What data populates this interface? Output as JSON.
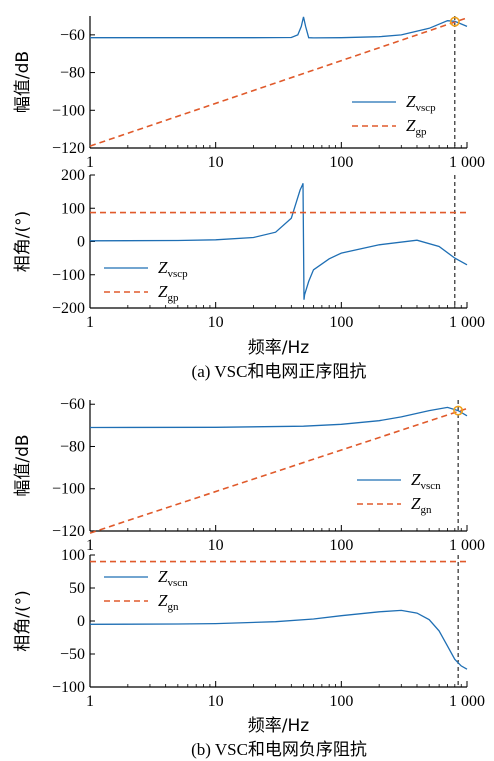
{
  "colors": {
    "impedance": "#1f6fb4",
    "grid": "#e05a2b",
    "marker": "#f0a21c",
    "axis": "#000000"
  },
  "captions": {
    "a": "(a)  VSC和电网正序阻抗",
    "b": "(b)  VSC和电网负序阻抗"
  },
  "chart_data": [
    {
      "type": "line",
      "xscale": "log",
      "xlim": [
        1,
        1000
      ],
      "xticks": [
        "1",
        "10",
        "100",
        "1 000"
      ],
      "xlabel": "",
      "ylabel": "幅值/dB",
      "ylim": [
        -120,
        -50
      ],
      "yticks": [
        "-60",
        "-80",
        "-100",
        "-120"
      ],
      "legend": "right",
      "marker": {
        "x": 800,
        "y": -53,
        "shape": "circle"
      },
      "vline_x": 800,
      "series": [
        {
          "name": "Zvscp",
          "label_main": "Z",
          "label_sub": "vscp",
          "style": "solid",
          "x": [
            1,
            5,
            20,
            40,
            45,
            48,
            50,
            52,
            55,
            60,
            100,
            200,
            300,
            500,
            700,
            800,
            1000
          ],
          "y": [
            -61.5,
            -61.5,
            -61.5,
            -61.4,
            -60,
            -55.5,
            -50.5,
            -55.5,
            -61.5,
            -61.6,
            -61.5,
            -61,
            -60,
            -56.5,
            -52.5,
            -52.8,
            -55.5
          ]
        },
        {
          "name": "Zgp",
          "label_main": "Z",
          "label_sub": "gp",
          "style": "dashed",
          "x": [
            1,
            1000
          ],
          "y": [
            -119,
            -51
          ]
        }
      ]
    },
    {
      "type": "line",
      "xscale": "log",
      "xlim": [
        1,
        1000
      ],
      "xticks": [
        "1",
        "10",
        "100",
        "1 000"
      ],
      "xlabel": "频率/Hz",
      "ylabel": "相角/(°)",
      "ylim": [
        -200,
        200
      ],
      "yticks": [
        "200",
        "100",
        "0",
        "-100",
        "-200"
      ],
      "legend": "bottom-left",
      "vline_x": 800,
      "series": [
        {
          "name": "Zvscp",
          "label_main": "Z",
          "label_sub": "vscp",
          "style": "solid",
          "x": [
            1,
            5,
            10,
            20,
            30,
            40,
            44,
            47,
            49,
            49.5,
            50.5,
            51,
            55,
            60,
            80,
            100,
            200,
            400,
            600,
            800,
            1000
          ],
          "y": [
            2,
            3,
            5,
            12,
            28,
            70,
            120,
            155,
            170,
            175,
            -175,
            -160,
            -120,
            -85,
            -52,
            -35,
            -10,
            4,
            -15,
            -50,
            -70
          ]
        },
        {
          "name": "Zgp",
          "label_main": "Z",
          "label_sub": "gp",
          "style": "dashed",
          "x": [
            1,
            1000
          ],
          "y": [
            87,
            87
          ]
        }
      ]
    },
    {
      "type": "line",
      "xscale": "log",
      "xlim": [
        1,
        1000
      ],
      "xticks": [
        "1",
        "10",
        "100",
        "1 000"
      ],
      "xlabel": "",
      "ylabel": "幅值/dB",
      "ylim": [
        -120,
        -58
      ],
      "yticks": [
        "-60",
        "-80",
        "-100",
        "-120"
      ],
      "legend": "right",
      "marker": {
        "x": 850,
        "y": -63,
        "shape": "circle"
      },
      "vline_x": 850,
      "series": [
        {
          "name": "Zvscn",
          "label_main": "Z",
          "label_sub": "vscn",
          "style": "solid",
          "x": [
            1,
            10,
            50,
            100,
            200,
            300,
            500,
            700,
            850,
            1000
          ],
          "y": [
            -71,
            -70.9,
            -70.4,
            -69.5,
            -67.8,
            -66,
            -63,
            -61.5,
            -63,
            -65.5
          ]
        },
        {
          "name": "Zgn",
          "label_main": "Z",
          "label_sub": "gn",
          "style": "dashed",
          "x": [
            1,
            1000
          ],
          "y": [
            -121,
            -62
          ]
        }
      ]
    },
    {
      "type": "line",
      "xscale": "log",
      "xlim": [
        1,
        1000
      ],
      "xticks": [
        "1",
        "10",
        "100",
        "1 000"
      ],
      "xlabel": "频率/Hz",
      "ylabel": "相角/(°)",
      "ylim": [
        -100,
        100
      ],
      "yticks": [
        "100",
        "50",
        "0",
        "-50",
        "-100"
      ],
      "legend": "top-left",
      "vline_x": 850,
      "series": [
        {
          "name": "Zvscn",
          "label_main": "Z",
          "label_sub": "vscn",
          "style": "solid",
          "x": [
            1,
            5,
            10,
            30,
            60,
            100,
            200,
            300,
            400,
            500,
            600,
            700,
            800,
            900,
            1000
          ],
          "y": [
            -5,
            -4.5,
            -4,
            -1,
            3,
            8,
            14,
            16,
            12,
            2,
            -15,
            -38,
            -58,
            -68,
            -73
          ]
        },
        {
          "name": "Zgn",
          "label_main": "Z",
          "label_sub": "gn",
          "style": "dashed",
          "x": [
            1,
            1000
          ],
          "y": [
            90,
            90
          ]
        }
      ]
    }
  ]
}
